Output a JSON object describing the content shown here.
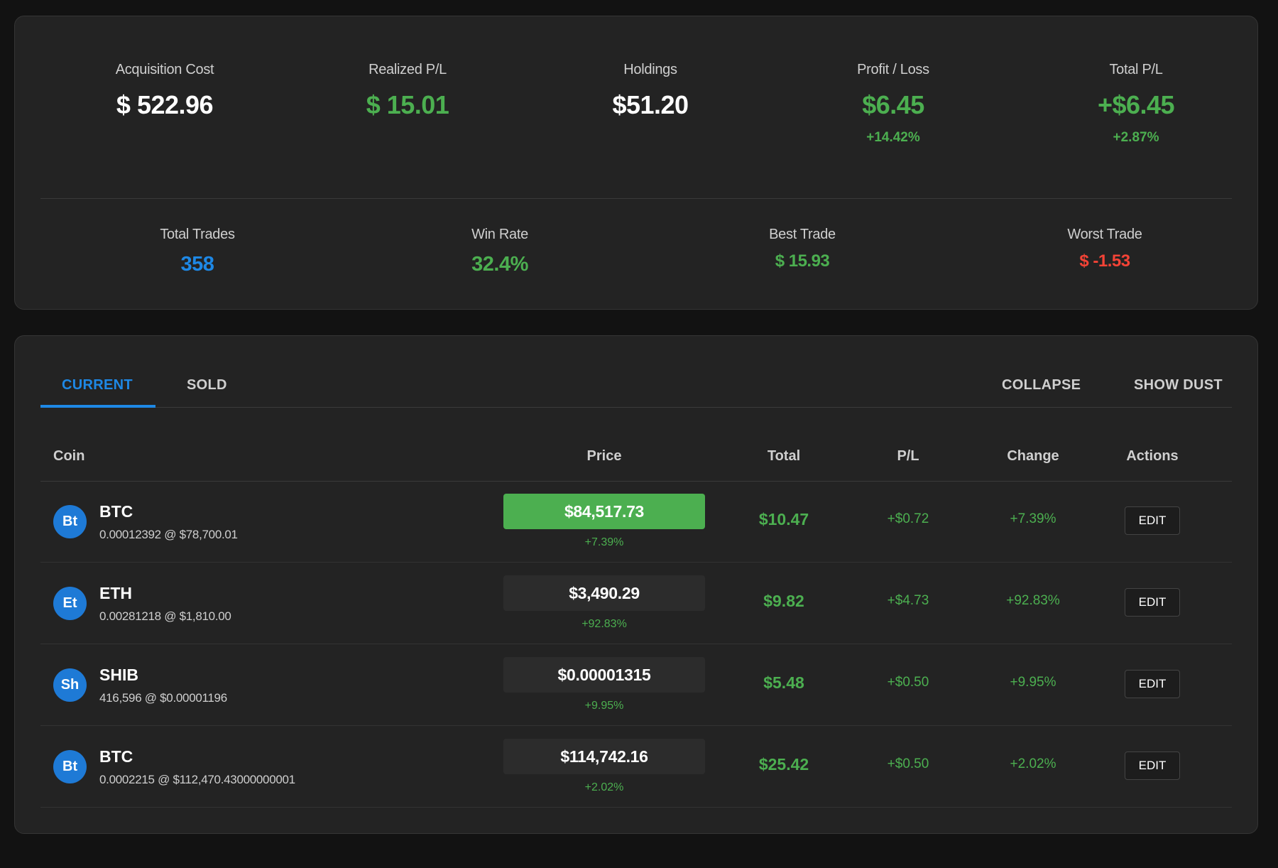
{
  "stats": {
    "acquisition_cost": {
      "label": "Acquisition Cost",
      "value": "$ 522.96"
    },
    "realized_pl": {
      "label": "Realized P/L",
      "value": "$ 15.01"
    },
    "holdings": {
      "label": "Holdings",
      "value": "$51.20"
    },
    "profit_loss": {
      "label": "Profit / Loss",
      "value": "$6.45",
      "percent": "+14.42%"
    },
    "total_pl": {
      "label": "Total P/L",
      "value": "+$6.45",
      "percent": "+2.87%"
    },
    "total_trades": {
      "label": "Total Trades",
      "value": "358"
    },
    "win_rate": {
      "label": "Win Rate",
      "value": "32.4%"
    },
    "best_trade": {
      "label": "Best Trade",
      "value": "$ 15.93"
    },
    "worst_trade": {
      "label": "Worst Trade",
      "value": "$ -1.53"
    }
  },
  "tabs": {
    "current": "CURRENT",
    "sold": "SOLD",
    "collapse": "COLLAPSE",
    "show_dust": "SHOW DUST"
  },
  "table": {
    "headers": {
      "coin": "Coin",
      "price": "Price",
      "total": "Total",
      "pl": "P/L",
      "change": "Change",
      "actions": "Actions"
    },
    "rows": [
      {
        "avatar": "Bt",
        "symbol": "BTC",
        "detail": "0.00012392 @ $78,700.01",
        "price": "$84,517.73",
        "price_change": "+7.39%",
        "total": "$10.47",
        "pl": "+$0.72",
        "change": "+7.39%",
        "action": "EDIT"
      },
      {
        "avatar": "Et",
        "symbol": "ETH",
        "detail": "0.00281218 @ $1,810.00",
        "price": "$3,490.29",
        "price_change": "+92.83%",
        "total": "$9.82",
        "pl": "+$4.73",
        "change": "+92.83%",
        "action": "EDIT"
      },
      {
        "avatar": "Sh",
        "symbol": "SHIB",
        "detail": "416,596 @ $0.00001196",
        "price": "$0.00001315",
        "price_change": "+9.95%",
        "total": "$5.48",
        "pl": "+$0.50",
        "change": "+9.95%",
        "action": "EDIT"
      },
      {
        "avatar": "Bt",
        "symbol": "BTC",
        "detail": "0.0002215 @ $112,470.43000000001",
        "price": "$114,742.16",
        "price_change": "+2.02%",
        "total": "$25.42",
        "pl": "+$0.50",
        "change": "+2.02%",
        "action": "EDIT"
      }
    ]
  },
  "colors": {
    "accent": "#1e88e5",
    "positive": "#4caf50",
    "negative": "#f44336",
    "card": "#232323",
    "background": "#121212"
  }
}
